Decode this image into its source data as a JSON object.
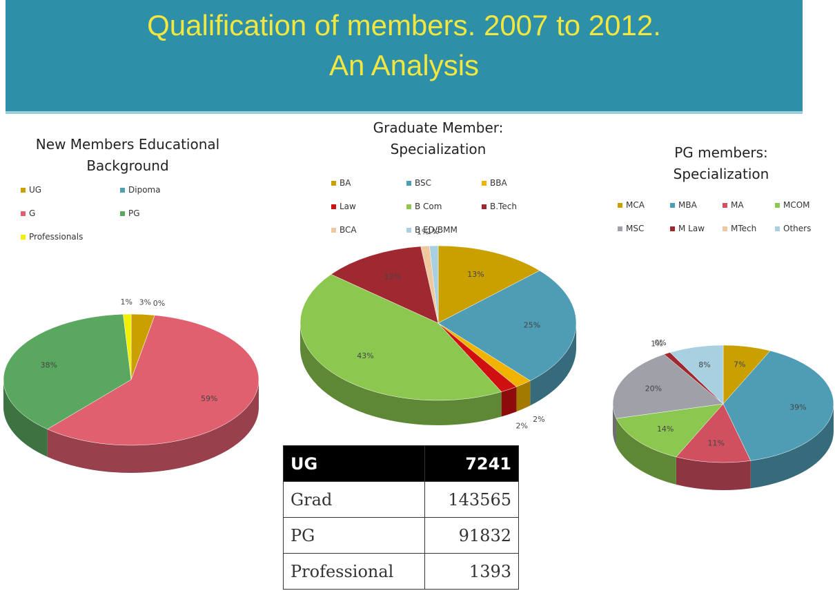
{
  "title": "Qualification of members.  2007 to 2012.",
  "subtitle": "An Analysis",
  "chart_data": [
    {
      "type": "pie",
      "title": "New Members Educational Background",
      "categories": [
        "UG",
        "Dipoma",
        "G",
        "PG",
        "Professionals"
      ],
      "values": [
        3,
        0,
        59,
        38,
        1
      ],
      "value_labels": [
        "3%",
        "0%",
        "59%",
        "38%",
        "1%"
      ],
      "colors": [
        "#c9a000",
        "#4fa0b0",
        "#e06070",
        "#5aa860",
        "#f0f000"
      ]
    },
    {
      "type": "pie",
      "title": "Graduate Member: Specialization",
      "categories": [
        "BA",
        "BSC",
        "BBA",
        "Law",
        "B Com",
        "B.Tech",
        "BCA",
        "B ED/BMM"
      ],
      "values": [
        13,
        25,
        2,
        2,
        43,
        12,
        1,
        1
      ],
      "value_labels": [
        "13%",
        "25%",
        "2%",
        "2%",
        "43%",
        "12%",
        "1%",
        "1%"
      ],
      "colors": [
        "#c9a000",
        "#4f9db5",
        "#f0b400",
        "#d01010",
        "#8cc850",
        "#a02830",
        "#f0c8a0",
        "#a8d0e0"
      ]
    },
    {
      "type": "pie",
      "title": "PG members: Specialization",
      "categories": [
        "MCA",
        "MBA",
        "MA",
        "MCOM",
        "MSC",
        "M Law",
        "MTech",
        "Others"
      ],
      "values": [
        7,
        39,
        11,
        14,
        20,
        1,
        0,
        8
      ],
      "value_labels": [
        "7%",
        "39%",
        "11%",
        "14%",
        "20%",
        "1%",
        "0%",
        "8%"
      ],
      "colors": [
        "#c9a000",
        "#4f9db5",
        "#d05060",
        "#8cc850",
        "#a0a0a8",
        "#a02830",
        "#f0c8a0",
        "#a8d0e0"
      ]
    }
  ],
  "table": {
    "rows": [
      [
        "UG",
        7241
      ],
      [
        "Grad",
        143565
      ],
      [
        "PG",
        91832
      ],
      [
        "Professional",
        1393
      ]
    ]
  }
}
